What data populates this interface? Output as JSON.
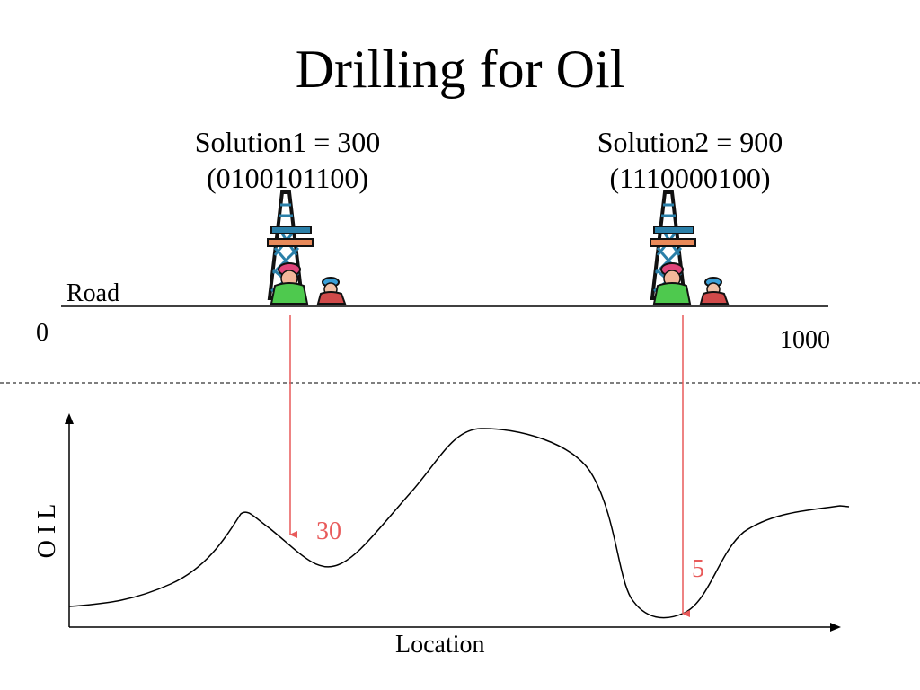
{
  "title": "Drilling for Oil",
  "solutions": [
    {
      "label": "Solution1 = 300",
      "binary": "(0100101100)",
      "location": 300,
      "oil_value": "30"
    },
    {
      "label": "Solution2 = 900",
      "binary": "(1110000100)",
      "location": 900,
      "oil_value": "5"
    }
  ],
  "road": {
    "label": "Road",
    "start_label": "0",
    "end_label": "1000",
    "min": 0,
    "max": 1000
  },
  "plot": {
    "xlabel": "Location",
    "ylabel": "O I L"
  },
  "colors": {
    "arrow": "#e85a5a",
    "text": "#000000"
  },
  "icons": [
    "oil-derrick-icon",
    "worker-icon"
  ]
}
